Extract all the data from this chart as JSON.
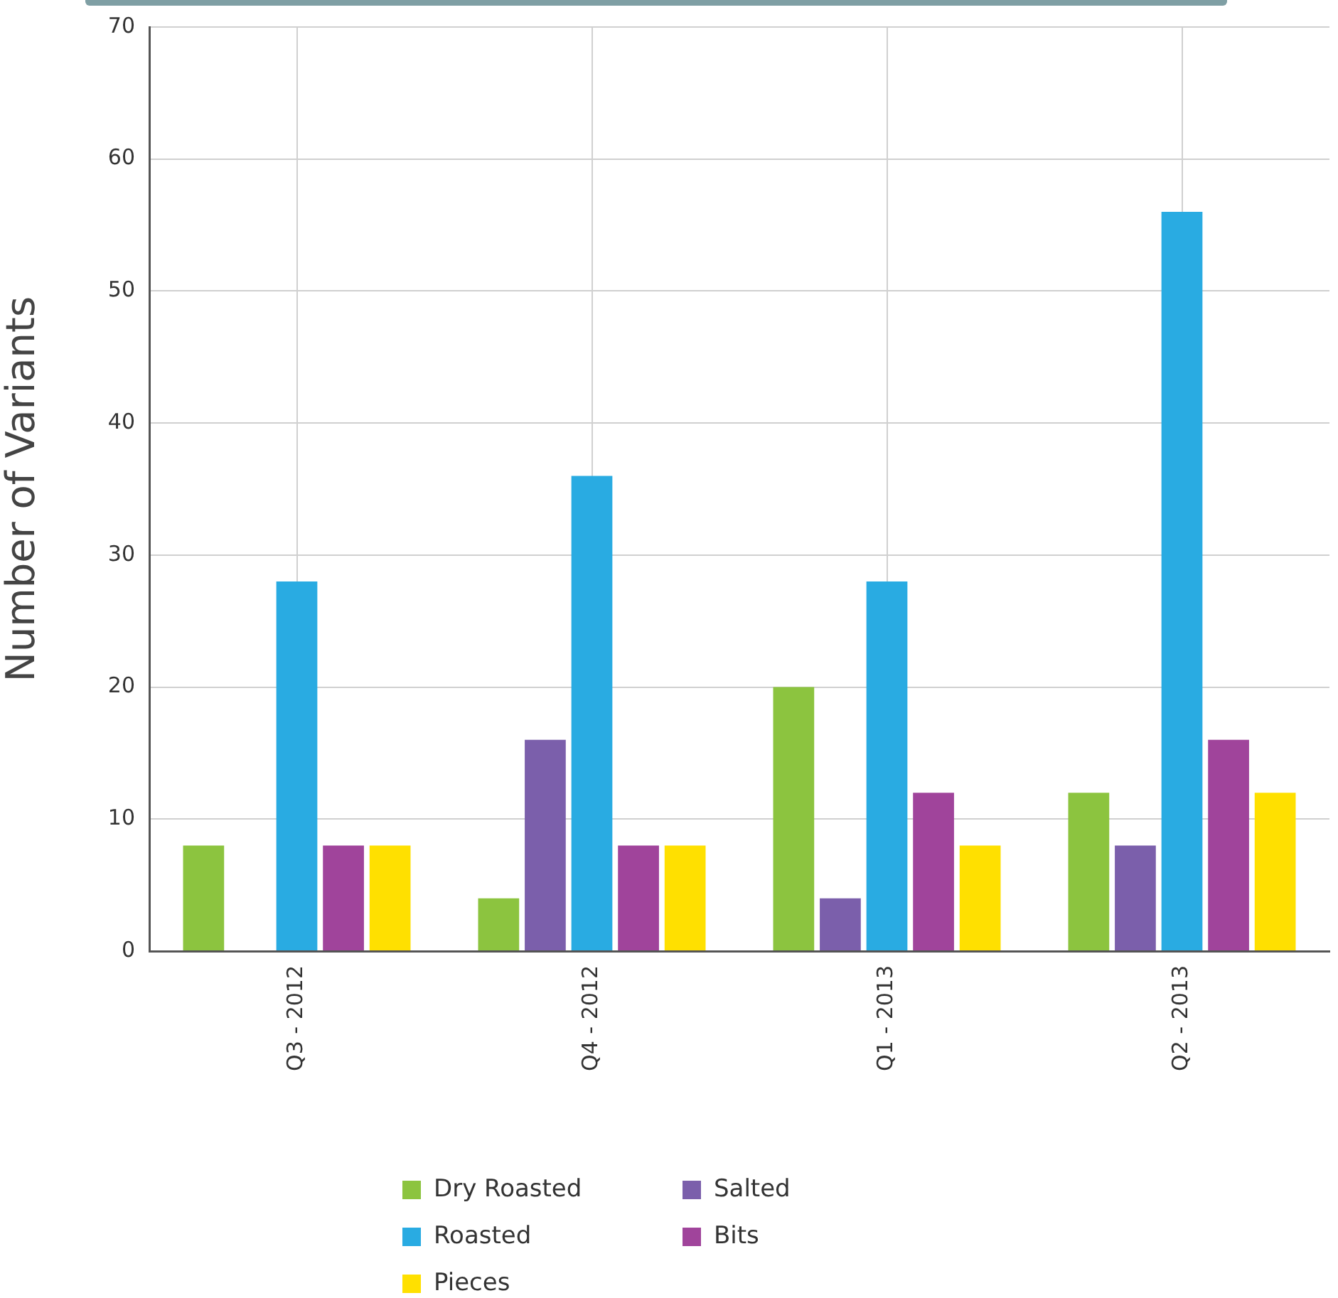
{
  "chart_data": {
    "type": "bar",
    "ylabel": "Number of Variants",
    "categories": [
      "Q3 - 2012",
      "Q4 - 2012",
      "Q1 - 2013",
      "Q2 - 2013"
    ],
    "series": [
      {
        "name": "Dry Roasted",
        "color": "#8cc43f",
        "values": [
          8,
          4,
          20,
          12
        ]
      },
      {
        "name": "Salted",
        "color": "#7b5fab",
        "values": [
          null,
          16,
          4,
          8
        ]
      },
      {
        "name": "Roasted",
        "color": "#29abe2",
        "values": [
          28,
          36,
          28,
          56
        ]
      },
      {
        "name": "Bits",
        "color": "#a0449b",
        "values": [
          8,
          8,
          12,
          16
        ]
      },
      {
        "name": "Pieces",
        "color": "#ffe000",
        "values": [
          8,
          8,
          8,
          12
        ]
      }
    ],
    "ylim": [
      0,
      70
    ],
    "yticks": [
      0,
      10,
      20,
      30,
      40,
      50,
      60,
      70
    ],
    "grid": true,
    "legend": "bottom"
  }
}
